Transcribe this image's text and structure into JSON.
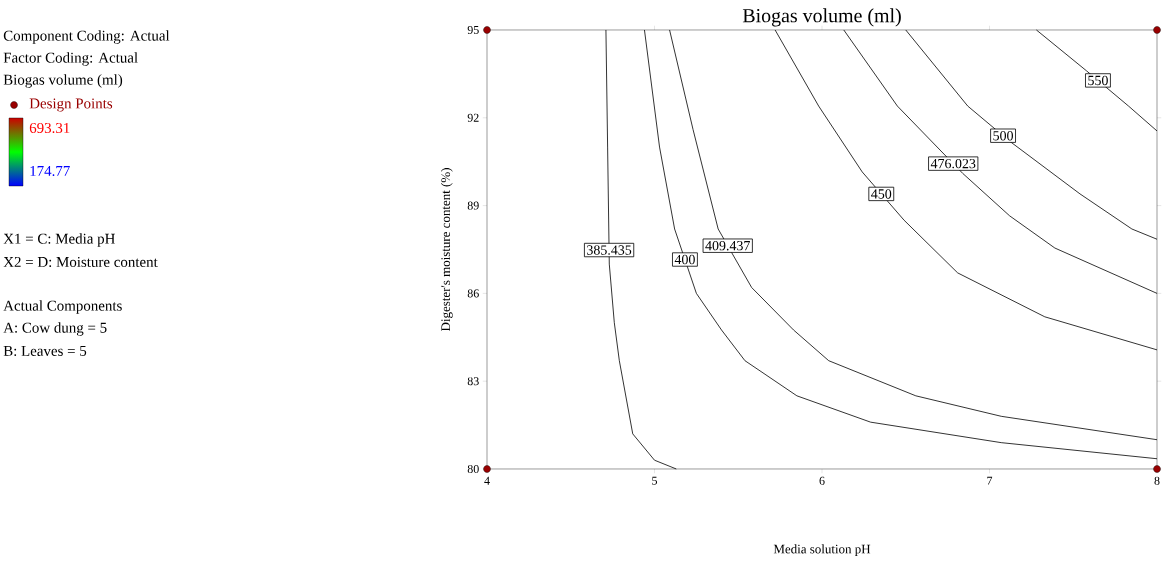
{
  "chart_data": {
    "type": "line",
    "title": "Biogas volume (ml)",
    "xlabel": "Media solution pH",
    "ylabel": "Digester's moisture content (%)",
    "xlim": [
      4,
      8
    ],
    "xticks": [
      4,
      5,
      6,
      7,
      8
    ],
    "ylim": [
      80,
      95
    ],
    "yticks": [
      80,
      83,
      86,
      89,
      92,
      95
    ],
    "marker": "none",
    "legend": "left",
    "annotations": [
      "Component Coding: Actual",
      "Factor Coding: Actual",
      "Biogas volume (ml)",
      "693.31",
      "174.77",
      "X1 = C: Media pH",
      "X2 = D: Moisture content",
      "Actual Components",
      "A: Cow dung = 5",
      "B: Leaves = 5"
    ],
    "series": [
      {
        "name": "385.435",
        "color": "#000000",
        "x": [
          4.71,
          4.72,
          4.73,
          4.76,
          4.79,
          4.87,
          5.0,
          5.13
        ],
        "values": [
          95,
          91,
          87,
          85,
          83.7,
          81.2,
          80.3,
          80
        ]
      },
      {
        "name": "400",
        "color": "#000000",
        "x": [
          4.94,
          5.03,
          5.12,
          5.25,
          5.4,
          5.54,
          5.85,
          6.29,
          7.07,
          8
        ],
        "values": [
          95,
          91,
          88.2,
          86,
          84.75,
          83.7,
          82.5,
          81.6,
          80.9,
          80.35
        ]
      },
      {
        "name": "409.437",
        "color": "#000000",
        "x": [
          5.09,
          5.23,
          5.38,
          5.58,
          5.83,
          6.04,
          6.56,
          7.07,
          8
        ],
        "values": [
          95,
          91.6,
          88.2,
          86.2,
          84.75,
          83.7,
          82.5,
          81.8,
          81.0
        ]
      },
      {
        "name": "450",
        "color": "#000000",
        "x": [
          5.72,
          5.98,
          6.24,
          6.49,
          6.81,
          7.33,
          8
        ],
        "values": [
          95,
          92.4,
          90.15,
          88.5,
          86.7,
          85.2,
          84.07
        ]
      },
      {
        "name": "476.023",
        "color": "#000000",
        "x": [
          6.13,
          6.45,
          6.84,
          7.12,
          7.39,
          8
        ],
        "values": [
          95,
          92.4,
          90.1,
          88.65,
          87.55,
          86.0
        ]
      },
      {
        "name": "500",
        "color": "#000000",
        "x": [
          6.5,
          6.87,
          7.12,
          7.54,
          7.85,
          8
        ],
        "values": [
          95,
          92.4,
          91.2,
          89.4,
          88.2,
          87.85
        ]
      },
      {
        "name": "550",
        "color": "#000000",
        "x": [
          7.28,
          7.58,
          7.83,
          8
        ],
        "values": [
          95,
          93.6,
          92.4,
          91.55
        ]
      },
      {
        "name": "Design Points",
        "type": "scatter",
        "color": "#990000",
        "x": [
          4,
          4,
          8,
          8
        ],
        "values": [
          80,
          95,
          80,
          95
        ]
      }
    ]
  }
}
